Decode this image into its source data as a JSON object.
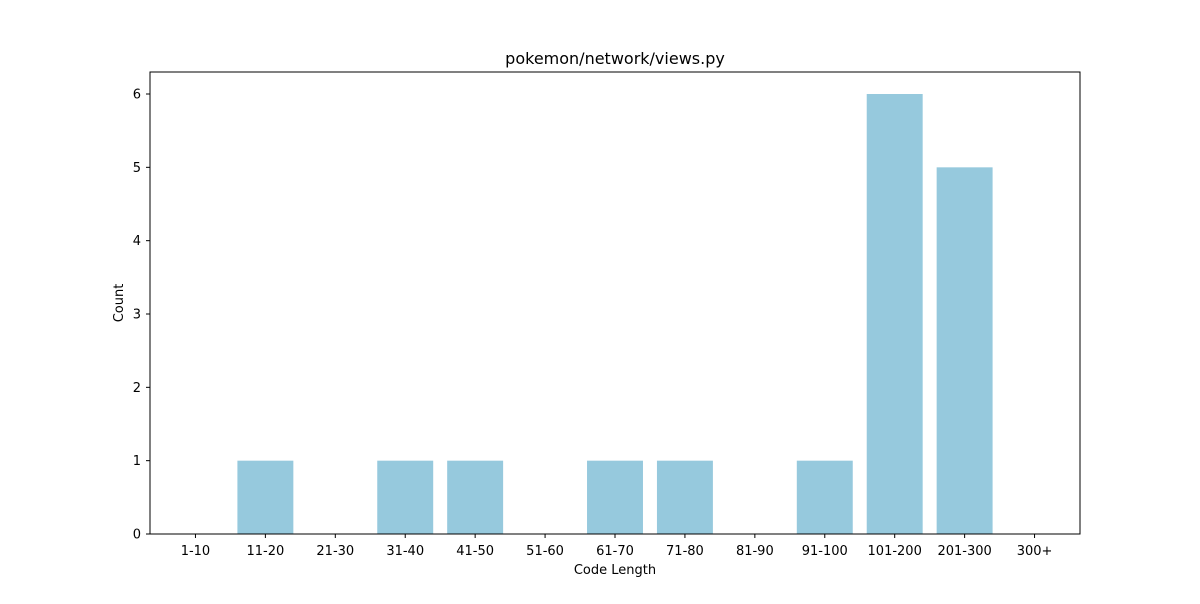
{
  "chart_data": {
    "type": "bar",
    "title": "pokemon/network/views.py",
    "xlabel": "Code Length",
    "ylabel": "Count",
    "categories": [
      "1-10",
      "11-20",
      "21-30",
      "31-40",
      "41-50",
      "51-60",
      "61-70",
      "71-80",
      "81-90",
      "91-100",
      "101-200",
      "201-300",
      "300+"
    ],
    "values": [
      0,
      1,
      0,
      1,
      1,
      0,
      1,
      1,
      0,
      1,
      6,
      5,
      0
    ],
    "ylim": [
      0,
      6.3
    ],
    "yticks": [
      0,
      1,
      2,
      3,
      4,
      5,
      6
    ],
    "bar_color": "#96c9dd",
    "grid": false,
    "legend": "none"
  }
}
